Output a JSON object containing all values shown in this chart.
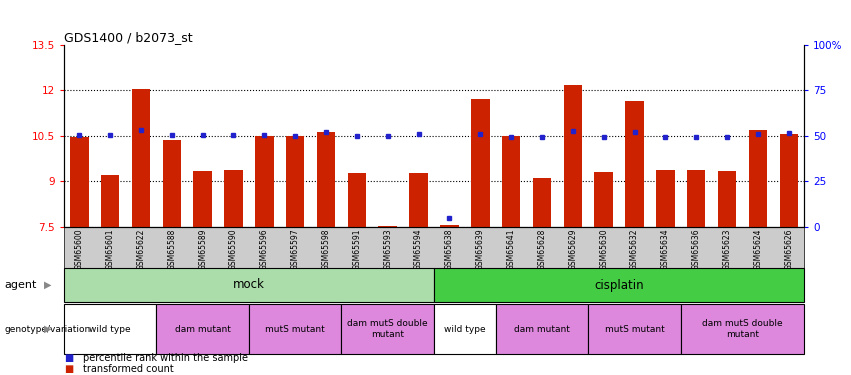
{
  "title": "GDS1400 / b2073_st",
  "samples": [
    "GSM65600",
    "GSM65601",
    "GSM65622",
    "GSM65588",
    "GSM65589",
    "GSM65590",
    "GSM65596",
    "GSM65597",
    "GSM65598",
    "GSM65591",
    "GSM65593",
    "GSM65594",
    "GSM65638",
    "GSM65639",
    "GSM65641",
    "GSM65628",
    "GSM65629",
    "GSM65630",
    "GSM65632",
    "GSM65634",
    "GSM65636",
    "GSM65623",
    "GSM65624",
    "GSM65626"
  ],
  "bar_values": [
    10.45,
    9.2,
    12.05,
    10.35,
    9.35,
    9.38,
    10.5,
    10.5,
    10.62,
    9.28,
    7.53,
    9.28,
    7.55,
    11.72,
    10.5,
    9.12,
    12.18,
    9.3,
    11.65,
    9.38,
    9.38,
    9.35,
    10.7,
    10.55
  ],
  "percentile_values": [
    10.52,
    10.52,
    10.68,
    10.52,
    10.53,
    10.53,
    10.53,
    10.5,
    10.62,
    10.5,
    10.5,
    10.57,
    7.8,
    10.57,
    10.45,
    10.45,
    10.65,
    10.47,
    10.62,
    10.47,
    10.47,
    10.47,
    10.57,
    10.6
  ],
  "ymin": 7.5,
  "ymax": 13.5,
  "yticks": [
    7.5,
    9.0,
    10.5,
    12.0,
    13.5
  ],
  "ytick_labels": [
    "7.5",
    "9",
    "10.5",
    "12",
    "13.5"
  ],
  "right_ytick_pcts": [
    0,
    25,
    50,
    75,
    100
  ],
  "right_ytick_labels": [
    "0",
    "25",
    "50",
    "75",
    "100%"
  ],
  "hlines": [
    9.0,
    10.5,
    12.0
  ],
  "bar_color": "#cc2200",
  "percentile_color": "#2222cc",
  "agent_groups": [
    {
      "label": "mock",
      "start": 0,
      "end": 12,
      "color": "#aaddaa"
    },
    {
      "label": "cisplatin",
      "start": 12,
      "end": 24,
      "color": "#44cc44"
    }
  ],
  "genotype_groups": [
    {
      "label": "wild type",
      "start": 0,
      "end": 3,
      "color": "#ffffff"
    },
    {
      "label": "dam mutant",
      "start": 3,
      "end": 6,
      "color": "#dd88dd"
    },
    {
      "label": "mutS mutant",
      "start": 6,
      "end": 9,
      "color": "#dd88dd"
    },
    {
      "label": "dam mutS double\nmutant",
      "start": 9,
      "end": 12,
      "color": "#dd88dd"
    },
    {
      "label": "wild type",
      "start": 12,
      "end": 14,
      "color": "#ffffff"
    },
    {
      "label": "dam mutant",
      "start": 14,
      "end": 17,
      "color": "#dd88dd"
    },
    {
      "label": "mutS mutant",
      "start": 17,
      "end": 20,
      "color": "#dd88dd"
    },
    {
      "label": "dam mutS double\nmutant",
      "start": 20,
      "end": 24,
      "color": "#dd88dd"
    }
  ],
  "legend_items": [
    {
      "label": "transformed count",
      "color": "#cc2200"
    },
    {
      "label": "percentile rank within the sample",
      "color": "#2222cc"
    }
  ],
  "agent_label": "agent",
  "genotype_label": "genotype/variation",
  "tick_bg_color": "#cccccc"
}
